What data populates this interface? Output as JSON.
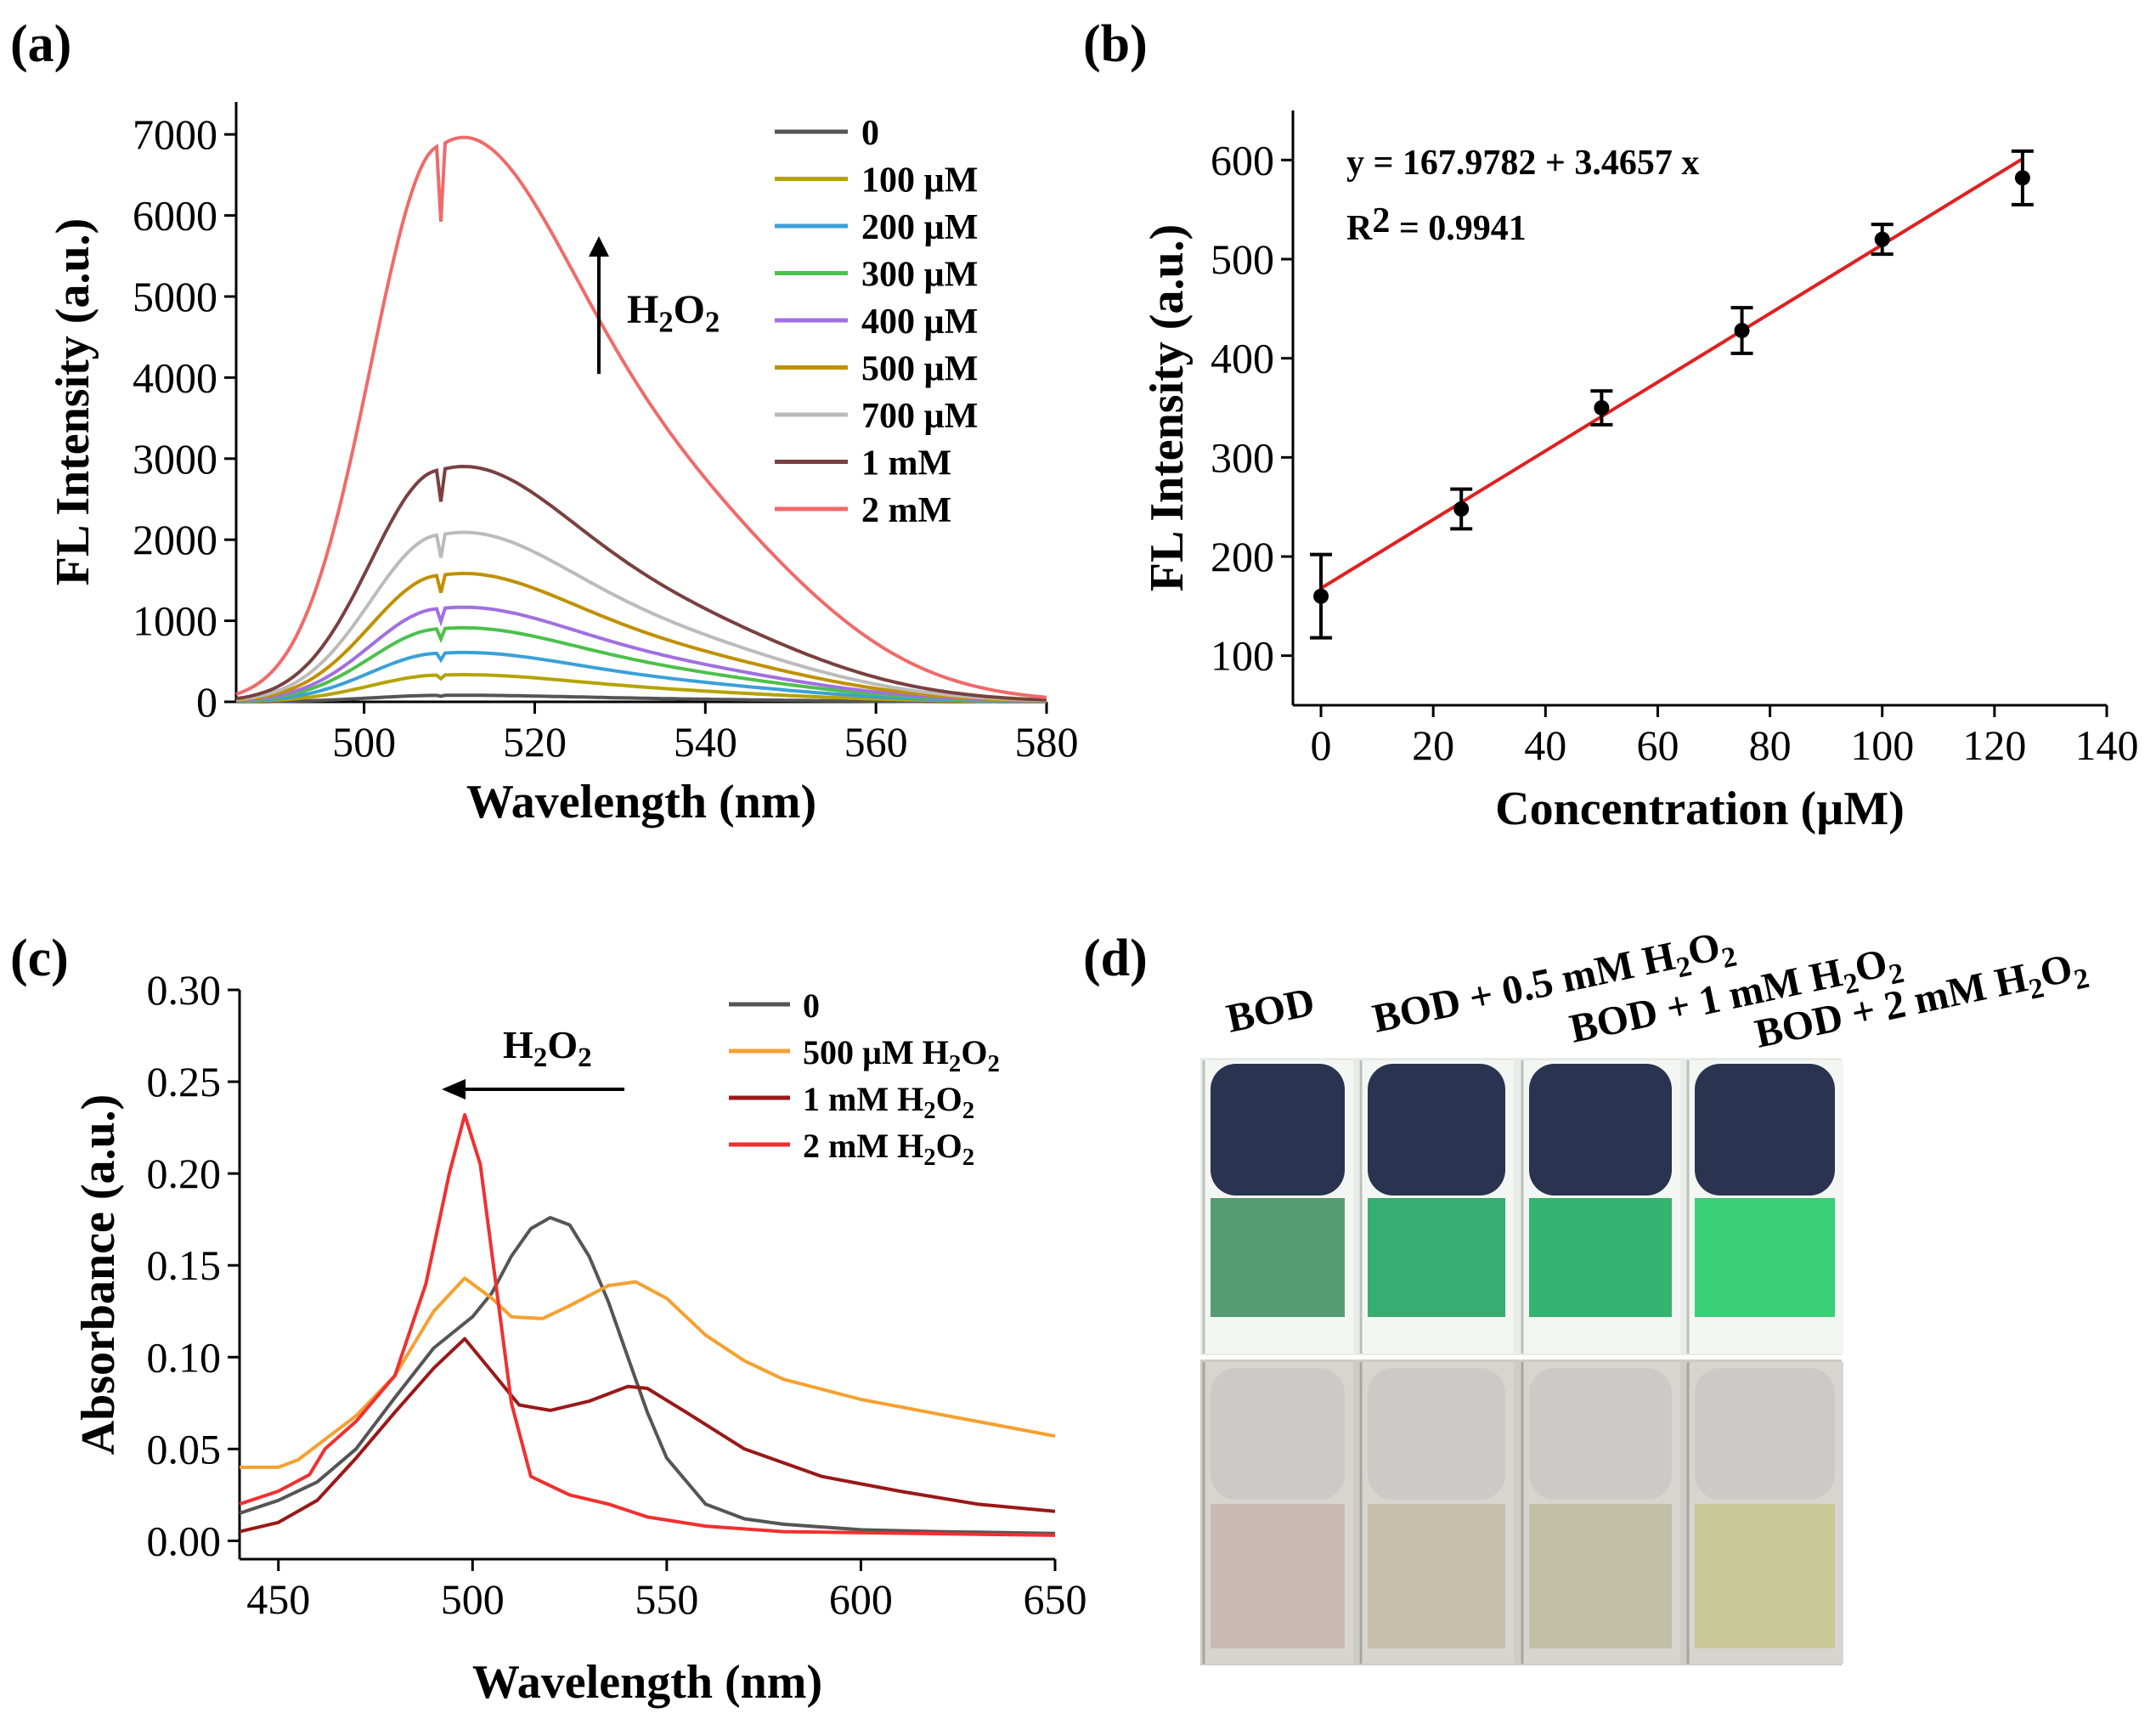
{
  "panels": {
    "a": "(a)",
    "b": "(b)",
    "c": "(c)",
    "d": "(d)"
  },
  "chart_data": [
    {
      "id": "a",
      "type": "line",
      "xlabel": "Wavelength (nm)",
      "ylabel": "FL Intensity (a.u.)",
      "xlim": [
        485,
        580
      ],
      "ylim": [
        0,
        7400
      ],
      "xticks": [
        500,
        520,
        540,
        560,
        580
      ],
      "yticks": [
        0,
        1000,
        2000,
        3000,
        4000,
        5000,
        6000,
        7000
      ],
      "legend_position": "top-right",
      "annotation": {
        "text": "H2O2",
        "base": "H",
        "sub1": "2",
        "mid": "O",
        "sub2": "2",
        "direction": "up"
      },
      "peak_wavelength": 509,
      "series": [
        {
          "name": "0",
          "peak": 80,
          "color": "#555555"
        },
        {
          "name": "100 µM",
          "peak": 330,
          "color": "#b5a300"
        },
        {
          "name": "200 µM",
          "peak": 600,
          "color": "#3aa0d8"
        },
        {
          "name": "300 µM",
          "peak": 900,
          "color": "#4cc04c"
        },
        {
          "name": "400 µM",
          "peak": 1150,
          "color": "#a070e0"
        },
        {
          "name": "500 µM",
          "peak": 1560,
          "color": "#c09000"
        },
        {
          "name": "700 µM",
          "peak": 2060,
          "color": "#bbbbbb"
        },
        {
          "name": "1 mM",
          "peak": 2860,
          "color": "#7a4040"
        },
        {
          "name": "2 mM",
          "peak": 6860,
          "color": "#f06a6a"
        }
      ]
    },
    {
      "id": "b",
      "type": "scatter",
      "xlabel": "Concentration (µM)",
      "ylabel": "FL Intensity (a.u.)",
      "xlim": [
        -5,
        140
      ],
      "ylim": [
        50,
        650
      ],
      "xticks": [
        0,
        20,
        40,
        60,
        80,
        100,
        120,
        140
      ],
      "yticks": [
        100,
        200,
        300,
        400,
        500,
        600
      ],
      "equation": "y = 167.9782 + 3.4657 x",
      "r2_label": "R",
      "r2_sup": "2",
      "r2_value": " = 0.9941",
      "fit": {
        "intercept": 167.9782,
        "slope": 3.4657,
        "color": "#e02020"
      },
      "points": [
        {
          "x": 0,
          "y": 160,
          "err": 42
        },
        {
          "x": 25,
          "y": 248,
          "err": 20
        },
        {
          "x": 50,
          "y": 350,
          "err": 17
        },
        {
          "x": 75,
          "y": 428,
          "err": 23
        },
        {
          "x": 100,
          "y": 520,
          "err": 15
        },
        {
          "x": 125,
          "y": 582,
          "err": 27
        }
      ]
    },
    {
      "id": "c",
      "type": "line",
      "xlabel": "Wavelength (nm)",
      "ylabel": "Absorbance (a.u.)",
      "xlim": [
        440,
        650
      ],
      "ylim": [
        -0.01,
        0.3
      ],
      "xticks": [
        450,
        500,
        550,
        600,
        650
      ],
      "yticks": [
        "0.00",
        "0.05",
        "0.10",
        "0.15",
        "0.20",
        "0.25",
        "0.30"
      ],
      "legend_position": "top-right",
      "annotation": {
        "base": "H",
        "sub1": "2",
        "mid": "O",
        "sub2": "2",
        "direction": "left"
      },
      "series": [
        {
          "name": "0",
          "color": "#555555",
          "points": [
            [
              440,
              0.015
            ],
            [
              450,
              0.022
            ],
            [
              460,
              0.032
            ],
            [
              470,
              0.05
            ],
            [
              480,
              0.078
            ],
            [
              490,
              0.105
            ],
            [
              500,
              0.122
            ],
            [
              505,
              0.135
            ],
            [
              510,
              0.155
            ],
            [
              515,
              0.17
            ],
            [
              520,
              0.176
            ],
            [
              525,
              0.172
            ],
            [
              530,
              0.155
            ],
            [
              535,
              0.13
            ],
            [
              540,
              0.1
            ],
            [
              545,
              0.07
            ],
            [
              550,
              0.045
            ],
            [
              560,
              0.02
            ],
            [
              570,
              0.012
            ],
            [
              580,
              0.009
            ],
            [
              600,
              0.006
            ],
            [
              620,
              0.005
            ],
            [
              650,
              0.004
            ]
          ]
        },
        {
          "name": "500 µM H",
          "sub": "2",
          "mid": "O",
          "sub2": "2",
          "color": "#f5a030",
          "points": [
            [
              440,
              0.04
            ],
            [
              450,
              0.04
            ],
            [
              455,
              0.044
            ],
            [
              460,
              0.052
            ],
            [
              470,
              0.068
            ],
            [
              480,
              0.09
            ],
            [
              490,
              0.125
            ],
            [
              498,
              0.143
            ],
            [
              505,
              0.132
            ],
            [
              510,
              0.122
            ],
            [
              518,
              0.121
            ],
            [
              525,
              0.128
            ],
            [
              535,
              0.139
            ],
            [
              542,
              0.141
            ],
            [
              550,
              0.132
            ],
            [
              560,
              0.112
            ],
            [
              570,
              0.098
            ],
            [
              580,
              0.088
            ],
            [
              600,
              0.077
            ],
            [
              620,
              0.069
            ],
            [
              640,
              0.061
            ],
            [
              650,
              0.057
            ]
          ]
        },
        {
          "name": "1 mM H",
          "sub": "2",
          "mid": "O",
          "sub2": "2",
          "color": "#9a1818",
          "points": [
            [
              440,
              0.005
            ],
            [
              450,
              0.01
            ],
            [
              460,
              0.022
            ],
            [
              470,
              0.045
            ],
            [
              480,
              0.07
            ],
            [
              490,
              0.094
            ],
            [
              498,
              0.11
            ],
            [
              505,
              0.092
            ],
            [
              512,
              0.074
            ],
            [
              520,
              0.071
            ],
            [
              530,
              0.076
            ],
            [
              540,
              0.084
            ],
            [
              545,
              0.083
            ],
            [
              555,
              0.07
            ],
            [
              570,
              0.05
            ],
            [
              590,
              0.035
            ],
            [
              610,
              0.027
            ],
            [
              630,
              0.02
            ],
            [
              650,
              0.016
            ]
          ]
        },
        {
          "name": "2 mM H",
          "sub": "2",
          "mid": "O",
          "sub2": "2",
          "color": "#f03030",
          "points": [
            [
              440,
              0.02
            ],
            [
              450,
              0.027
            ],
            [
              458,
              0.036
            ],
            [
              462,
              0.05
            ],
            [
              470,
              0.065
            ],
            [
              480,
              0.09
            ],
            [
              488,
              0.14
            ],
            [
              494,
              0.2
            ],
            [
              498,
              0.232
            ],
            [
              502,
              0.205
            ],
            [
              506,
              0.14
            ],
            [
              510,
              0.075
            ],
            [
              515,
              0.035
            ],
            [
              525,
              0.025
            ],
            [
              535,
              0.02
            ],
            [
              545,
              0.013
            ],
            [
              560,
              0.008
            ],
            [
              580,
              0.005
            ],
            [
              650,
              0.003
            ]
          ]
        }
      ]
    }
  ],
  "photo": {
    "cuvettes": [
      {
        "label": "BOD",
        "sub": "",
        "top_fill": "#3a8c5c",
        "bottom_fill": "#c9b6b0"
      },
      {
        "label": "BOD + 0.5 mM H",
        "sub": "2",
        "mid": "O",
        "sub2": "2",
        "top_fill": "#16a05a",
        "bottom_fill": "#c6bca6"
      },
      {
        "label": "BOD + 1 mM H",
        "sub": "2",
        "mid": "O",
        "sub2": "2",
        "top_fill": "#10a858",
        "bottom_fill": "#bfbca0"
      },
      {
        "label": "BOD + 2 mM H",
        "sub": "2",
        "mid": "O",
        "sub2": "2",
        "top_fill": "#18c860",
        "bottom_fill": "#c8c690"
      }
    ]
  }
}
